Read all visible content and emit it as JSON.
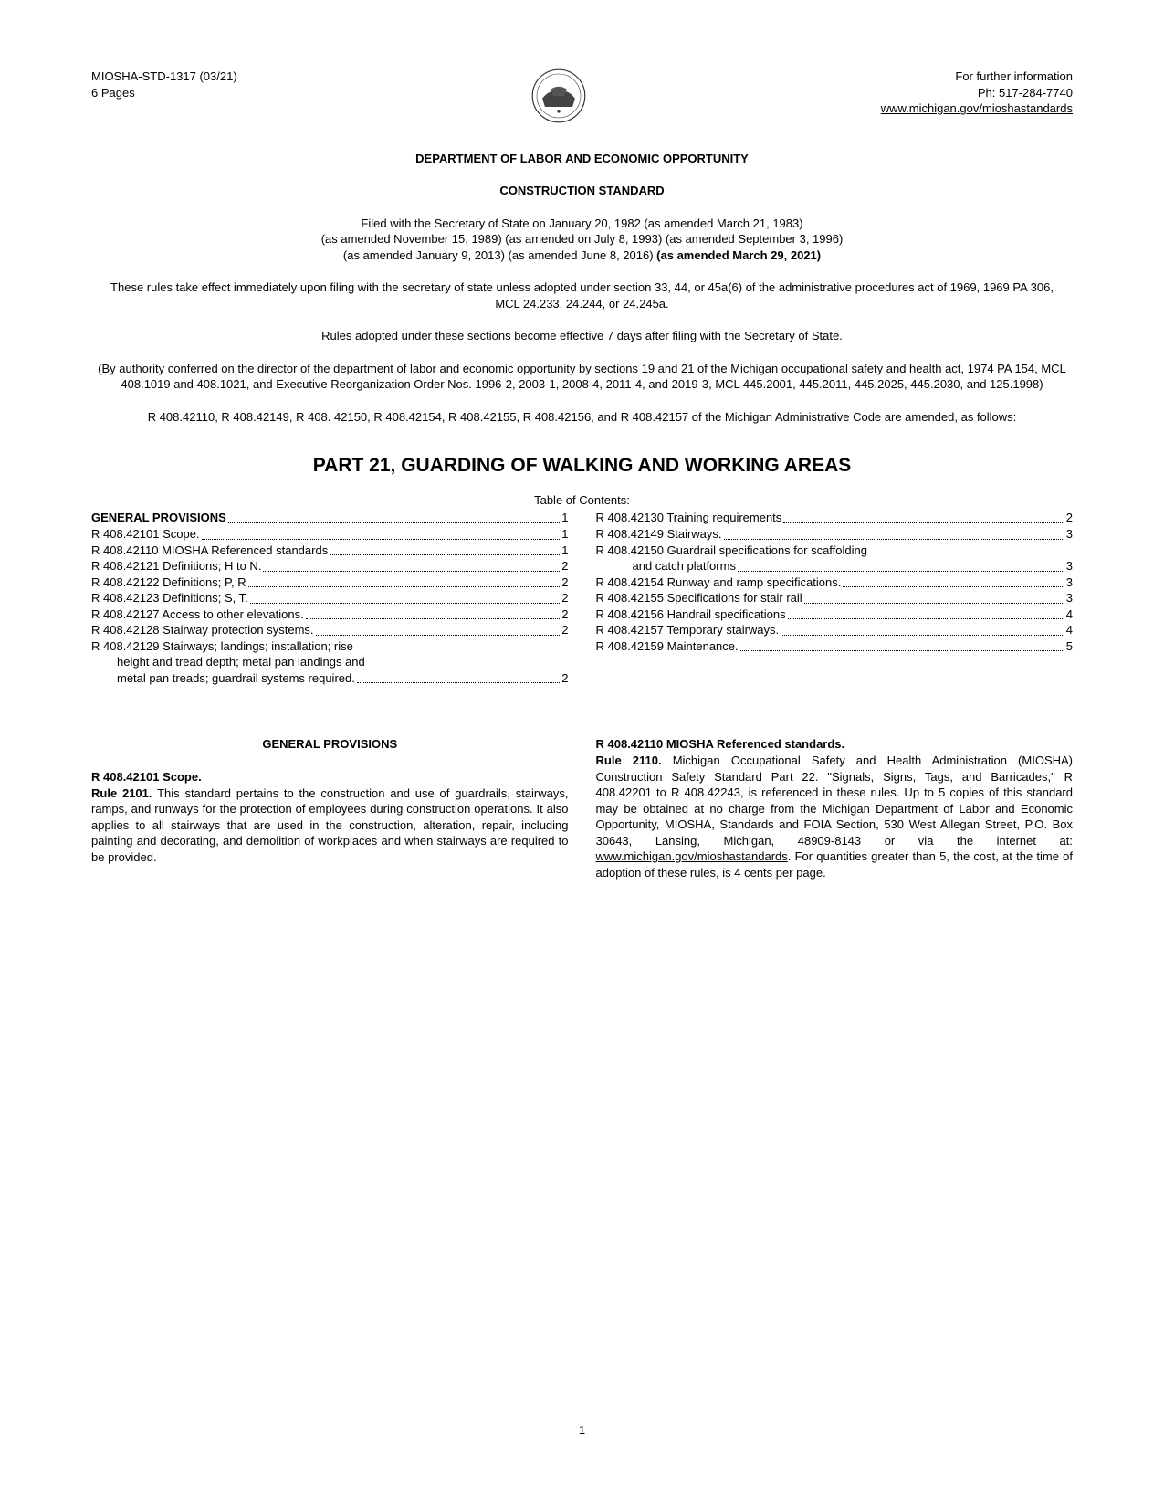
{
  "header": {
    "doc_id": "MIOSHA-STD-1317 (03/21)",
    "pages": "6 Pages",
    "info_line": "For further information",
    "phone": "Ph: 517-284-7740",
    "url": "www.michigan.gov/mioshastandards"
  },
  "department_heading": "DEPARTMENT OF LABOR AND ECONOMIC OPPORTUNITY",
  "construction_heading": "CONSTRUCTION STANDARD",
  "filing": {
    "line1": "Filed with the Secretary of State on January 20, 1982 (as amended March 21, 1983)",
    "line2": "(as amended November 15, 1989) (as amended on July 8, 1993) (as amended September 3, 1996)",
    "line3_prefix": "(as amended January 9, 2013) (as amended June 8, 2016) ",
    "line3_bold": "(as amended March 29, 2021)"
  },
  "effect_text": "These rules take effect immediately upon filing with the secretary of state unless adopted under section 33, 44, or 45a(6) of the administrative procedures act of 1969, 1969 PA 306, MCL 24.233, 24.244, or 24.245a.",
  "rules_effective": "Rules adopted under these sections become effective 7 days after filing with the Secretary of State.",
  "authority_text": "(By authority conferred on the director of the department of labor and economic opportunity by sections 19 and 21 of the Michigan occupational safety and health act, 1974 PA 154, MCL 408.1019 and 408.1021, and Executive Reorganization Order Nos. 1996-2, 2003-1, 2008-4, 2011-4, and 2019-3, MCL 445.2001, 445.2011, 445.2025, 445.2030, and 125.1998)",
  "amendments_text": "R 408.42110, R 408.42149, R 408. 42150, R 408.42154, R 408.42155, R 408.42156, and R 408.42157 of the Michigan Administrative Code are amended, as follows:",
  "part_title": "PART 21, GUARDING OF WALKING AND WORKING AREAS",
  "toc_label": "Table of Contents:",
  "toc_left": [
    {
      "text": "GENERAL PROVISIONS",
      "page": "1",
      "heading": true
    },
    {
      "text": "R 408.42101 Scope.",
      "page": "1"
    },
    {
      "text": "R 408.42110 MIOSHA Referenced standards",
      "page": "1"
    },
    {
      "text": "R 408.42121 Definitions; H to N.",
      "page": "2"
    },
    {
      "text": "R 408.42122 Definitions; P, R",
      "page": "2"
    },
    {
      "text": "R 408.42123 Definitions; S, T.",
      "page": "2"
    },
    {
      "text": "R 408.42127 Access to other elevations.",
      "page": "2"
    },
    {
      "text": "R 408.42128 Stairway protection systems.",
      "page": "2"
    },
    {
      "text": "R 408.42129 Stairways; landings; installation; rise",
      "page": null
    },
    {
      "text": "height and tread depth; metal pan landings and",
      "page": null,
      "continue": true
    },
    {
      "text": "metal pan treads; guardrail systems required.",
      "page": "2",
      "continue": true
    }
  ],
  "toc_right": [
    {
      "text": "R 408.42130 Training requirements",
      "page": "2"
    },
    {
      "text": "R 408.42149 Stairways.",
      "page": "3"
    },
    {
      "text": "R 408.42150 Guardrail specifications for scaffolding",
      "page": null
    },
    {
      "text": "and catch platforms",
      "page": "3",
      "continue": true
    },
    {
      "text": "R 408.42154 Runway and ramp specifications.",
      "page": "3"
    },
    {
      "text": "R 408.42155 Specifications for stair rail",
      "page": "3"
    },
    {
      "text": "R 408.42156 Handrail specifications",
      "page": "4"
    },
    {
      "text": "R 408.42157 Temporary stairways.",
      "page": "4"
    },
    {
      "text": "R 408.42159 Maintenance.",
      "page": "5"
    }
  ],
  "body_left": {
    "heading": "GENERAL PROVISIONS",
    "rule_title": "R 408.42101 Scope.",
    "rule_number": "Rule 2101.",
    "rule_text": " This standard pertains to the construction and use of guardrails, stairways, ramps, and runways for the protection of employees during construction operations. It also applies to all stairways that are used in the construction, alteration, repair, including painting and decorating, and demolition of workplaces and when stairways are required to be provided."
  },
  "body_right": {
    "rule_title": "R 408.42110 MIOSHA Referenced standards.",
    "rule_number": "Rule 2110.",
    "rule_text_1": " Michigan Occupational Safety and Health Administration (MIOSHA) Construction Safety Standard Part 22. \"Signals, Signs, Tags, and Barricades,\" R 408.42201 to R 408.42243, is referenced in these rules. Up to 5 copies of this standard may be obtained at no charge from the Michigan Department of Labor and Economic Opportunity, MIOSHA, Standards and FOIA Section, 530 West Allegan Street, P.O. Box 30643, Lansing, Michigan, 48909-8143 or via the internet at: ",
    "url": "www.michigan.gov/mioshastandards",
    "rule_text_2": ". For quantities greater than 5, the cost, at the time of adoption of these rules, is 4 cents per page."
  },
  "page_number": "1"
}
